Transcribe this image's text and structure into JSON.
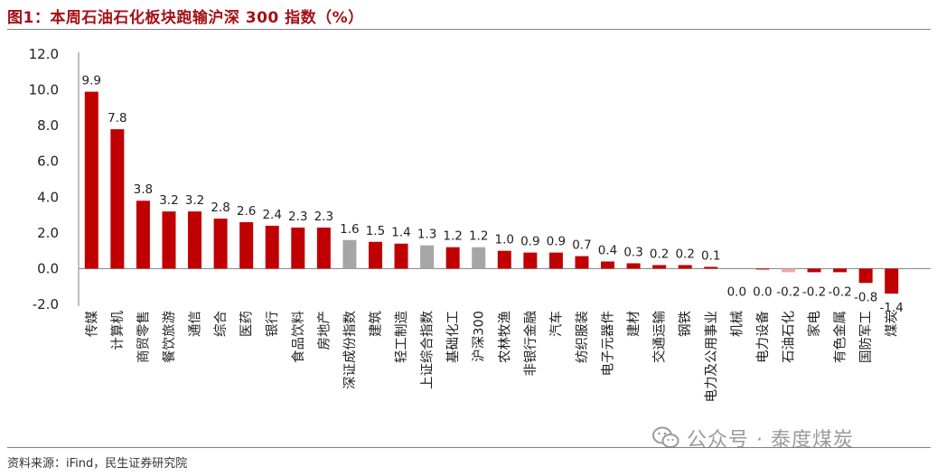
{
  "figure": {
    "title": "图1：本周石油石化板块跑输沪深 300 指数（%）",
    "source": "资料来源：iFind，民生证券研究院",
    "watermark": "公众号 · 泰度煤炭"
  },
  "colors": {
    "highlight": "#c00000",
    "index": "#a6a6a6",
    "oil_petrochem": "#f4a6a6",
    "title": "#a50f15"
  },
  "chart_data": {
    "type": "bar",
    "title": "图1：本周石油石化板块跑输沪深 300 指数（%）",
    "xlabel": "",
    "ylabel": "",
    "ylim": [
      -2.0,
      12.0
    ],
    "yticks": [
      "12.0",
      "10.0",
      "8.0",
      "6.0",
      "4.0",
      "2.0",
      "0.0",
      "-2.0"
    ],
    "grid": false,
    "legend": "none",
    "categories": [
      "传媒",
      "计算机",
      "商贸零售",
      "餐饮旅游",
      "通信",
      "综合",
      "医药",
      "银行",
      "食品饮料",
      "房地产",
      "深证成份指数",
      "建筑",
      "轻工制造",
      "上证综合指数",
      "基础化工",
      "沪深300",
      "农林牧渔",
      "非银行金融",
      "汽车",
      "纺织服装",
      "电子元器件",
      "建材",
      "交通运输",
      "钢铁",
      "电力及公用事业",
      "机械",
      "电力设备",
      "石油石化",
      "家电",
      "有色金属",
      "国防军工",
      "煤炭"
    ],
    "values": [
      9.9,
      7.8,
      3.8,
      3.2,
      3.2,
      2.8,
      2.6,
      2.4,
      2.3,
      2.3,
      1.6,
      1.5,
      1.4,
      1.3,
      1.2,
      1.2,
      1.0,
      0.9,
      0.9,
      0.7,
      0.4,
      0.3,
      0.2,
      0.2,
      0.1,
      0.0,
      -0.05,
      -0.2,
      -0.2,
      -0.2,
      -0.8,
      -1.4
    ],
    "labels": [
      "9.9",
      "7.8",
      "3.8",
      "3.2",
      "3.2",
      "2.8",
      "2.6",
      "2.4",
      "2.3",
      "2.3",
      "1.6",
      "1.5",
      "1.4",
      "1.3",
      "1.2",
      "1.2",
      "1.0",
      "0.9",
      "0.9",
      "0.7",
      "0.4",
      "0.3",
      "0.2",
      "0.2",
      "0.1",
      "0.0",
      "0.0",
      "-0.2",
      "-0.2",
      "-0.2",
      "-0.8",
      "-1.4"
    ],
    "kinds": [
      "s",
      "s",
      "s",
      "s",
      "s",
      "s",
      "s",
      "s",
      "s",
      "s",
      "i",
      "s",
      "s",
      "i",
      "s",
      "i",
      "s",
      "s",
      "s",
      "s",
      "s",
      "s",
      "s",
      "s",
      "s",
      "s",
      "s",
      "o",
      "s",
      "s",
      "s",
      "s"
    ]
  }
}
